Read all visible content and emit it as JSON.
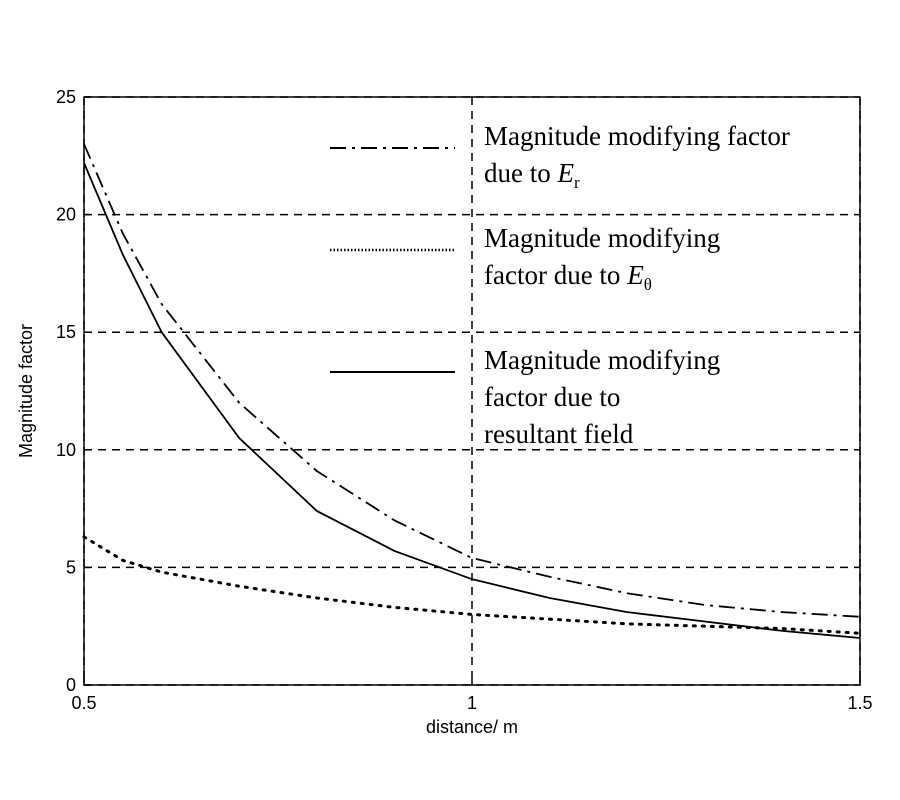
{
  "chart_data": {
    "type": "line",
    "xlabel": "distance/ m",
    "ylabel": "Magnitude factor",
    "x": [
      0.5,
      0.55,
      0.6,
      0.7,
      0.8,
      0.9,
      1.0,
      1.1,
      1.2,
      1.3,
      1.4,
      1.5
    ],
    "series": [
      {
        "name": "Magnitude modifying factor due to Er",
        "color": "#000000",
        "style": "dash-dot",
        "values": [
          23,
          19.2,
          16.2,
          12.0,
          9.1,
          7.0,
          5.4,
          4.6,
          3.9,
          3.4,
          3.1,
          2.9
        ]
      },
      {
        "name": "Magnitude modifying factor due to Eθ",
        "color": "#000000",
        "style": "dotted",
        "values": [
          6.3,
          5.3,
          4.8,
          4.2,
          3.7,
          3.3,
          3.0,
          2.8,
          2.6,
          2.5,
          2.4,
          2.2
        ]
      },
      {
        "name": "Magnitude modifying factor due to resultant field",
        "color": "#000000",
        "style": "solid",
        "values": [
          22.2,
          18.3,
          15.0,
          10.5,
          7.4,
          5.7,
          4.5,
          3.7,
          3.1,
          2.7,
          2.3,
          2.0
        ]
      }
    ],
    "xlim": [
      0.5,
      1.5
    ],
    "xticks": [
      0.5,
      1,
      1.5
    ],
    "ylim": [
      0,
      25
    ],
    "yticks": [
      0,
      5,
      10,
      15,
      20,
      25
    ],
    "grid": true
  }
}
